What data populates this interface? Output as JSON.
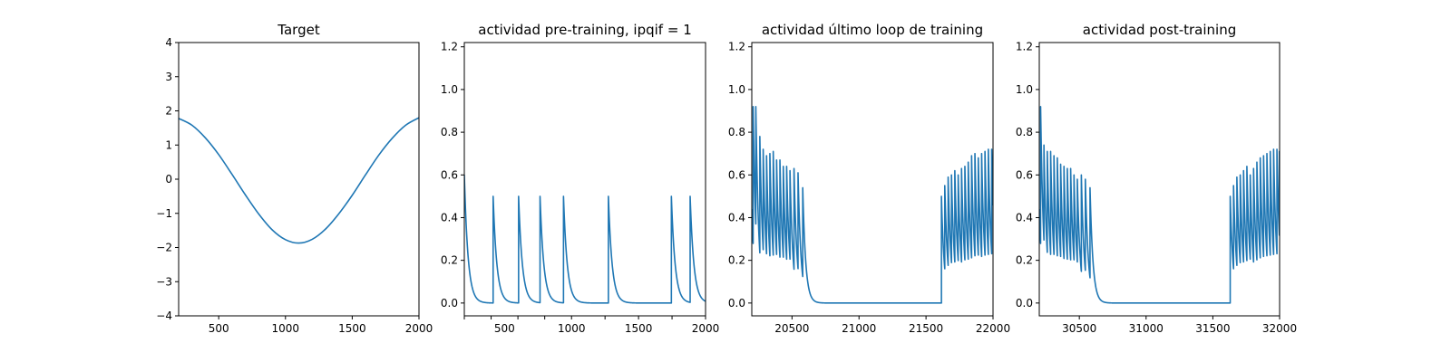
{
  "colors": {
    "series": "#1f77b4",
    "frame": "#000000",
    "background": "#ffffff"
  },
  "chart_data": [
    {
      "type": "line",
      "title": "Target",
      "xlabel": "",
      "ylabel": "",
      "xlim": [
        200,
        2000
      ],
      "ylim": [
        -4,
        4
      ],
      "grid": false,
      "xticks": [
        500,
        1000,
        1500,
        2000
      ],
      "xtick_labels": [
        "500",
        "1000",
        "1500",
        "2000"
      ],
      "yticks": [
        -4,
        -3,
        -2,
        -1,
        0,
        1,
        2,
        3,
        4
      ],
      "ytick_labels": [
        "−4",
        "−3",
        "−2",
        "−1",
        "0",
        "1",
        "2",
        "3",
        "4"
      ],
      "series": [
        {
          "x": [
            200,
            300,
            400,
            500,
            600,
            700,
            800,
            900,
            1000,
            1100,
            1200,
            1300,
            1400,
            1500,
            1600,
            1700,
            1800,
            1900,
            2000
          ],
          "y": [
            1.78,
            1.58,
            1.21,
            0.72,
            0.14,
            -0.46,
            -1.02,
            -1.48,
            -1.77,
            -1.87,
            -1.76,
            -1.46,
            -1.01,
            -0.47,
            0.13,
            0.71,
            1.2,
            1.58,
            1.8
          ]
        }
      ]
    },
    {
      "type": "line",
      "title": "actividad pre-training, ipqif = 1",
      "xlabel": "",
      "ylabel": "",
      "xlim": [
        200,
        2000
      ],
      "ylim": [
        -0.06,
        1.22
      ],
      "grid": false,
      "xticks": [
        200,
        400,
        600,
        800,
        1000,
        1250,
        1500,
        1750,
        2000
      ],
      "xtick_labels": [
        "",
        "",
        "",
        "",
        "",
        "",
        "",
        "",
        ""
      ],
      "xtick_labels_shown": [
        {
          "value": 200,
          "label": ""
        },
        {
          "value": 500,
          "label": ""
        }
      ],
      "yticks": [
        0.0,
        0.2,
        0.4,
        0.6,
        0.8,
        1.0,
        1.2
      ],
      "ytick_labels": [
        "0.0",
        "0.2",
        "0.4",
        "0.6",
        "0.8",
        "1.0",
        "1.2"
      ],
      "spikes": {
        "start_value": 0.6,
        "times": [
          415,
          605,
          765,
          940,
          1275,
          1745,
          1885
        ],
        "peaks": [
          0.5,
          0.5,
          0.5,
          0.5,
          0.5,
          0.5,
          0.5
        ],
        "decay": 28
      }
    },
    {
      "type": "line",
      "title": "actividad último loop de training",
      "xlabel": "",
      "ylabel": "",
      "xlim": [
        20200,
        22000
      ],
      "ylim": [
        -0.06,
        1.22
      ],
      "grid": false,
      "xticks": [
        20500,
        21000,
        21500,
        22000
      ],
      "xtick_labels": [
        "20500",
        "21000",
        "21500",
        "22000"
      ],
      "yticks": [
        0.0,
        0.2,
        0.4,
        0.6,
        0.8,
        1.0,
        1.2
      ],
      "ytick_labels": [
        "0.0",
        "0.2",
        "0.4",
        "0.6",
        "0.8",
        "1.0",
        "1.2"
      ],
      "spikes": {
        "start_value": 0.44,
        "times": [
          20210,
          20230,
          20260,
          20285,
          20310,
          20335,
          20360,
          20385,
          20410,
          20435,
          20460,
          20485,
          20515,
          20545,
          20580,
          21615,
          21640,
          21665,
          21690,
          21715,
          21740,
          21765,
          21790,
          21815,
          21840,
          21865,
          21890,
          21915,
          21940,
          21965,
          21990
        ],
        "peaks": [
          0.92,
          0.92,
          0.78,
          0.72,
          0.69,
          0.7,
          0.71,
          0.67,
          0.67,
          0.64,
          0.64,
          0.62,
          0.63,
          0.61,
          0.54,
          0.5,
          0.55,
          0.59,
          0.6,
          0.62,
          0.6,
          0.63,
          0.64,
          0.66,
          0.69,
          0.7,
          0.68,
          0.7,
          0.71,
          0.72,
          0.72
        ],
        "decay": 22
      }
    },
    {
      "type": "line",
      "title": "actividad post-training",
      "xlabel": "",
      "ylabel": "",
      "xlim": [
        30200,
        32000
      ],
      "ylim": [
        -0.06,
        1.22
      ],
      "grid": false,
      "xticks": [
        30500,
        31000,
        31500,
        32000
      ],
      "xtick_labels": [
        "30500",
        "31000",
        "31500",
        "32000"
      ],
      "yticks": [
        0.0,
        0.2,
        0.4,
        0.6,
        0.8,
        1.0,
        1.2
      ],
      "ytick_labels": [
        "0.0",
        "0.2",
        "0.4",
        "0.6",
        "0.8",
        "1.0",
        "1.2"
      ],
      "spikes": {
        "start_value": 0.44,
        "times": [
          30210,
          30235,
          30260,
          30285,
          30310,
          30335,
          30360,
          30385,
          30410,
          30435,
          30460,
          30485,
          30515,
          30545,
          30580,
          31630,
          31655,
          31680,
          31705,
          31730,
          31755,
          31780,
          31805,
          31830,
          31855,
          31880,
          31905,
          31930,
          31955,
          31980,
          31998
        ],
        "peaks": [
          0.92,
          0.74,
          0.71,
          0.71,
          0.69,
          0.68,
          0.65,
          0.64,
          0.63,
          0.63,
          0.6,
          0.58,
          0.6,
          0.58,
          0.54,
          0.5,
          0.55,
          0.59,
          0.6,
          0.62,
          0.64,
          0.6,
          0.63,
          0.66,
          0.68,
          0.69,
          0.7,
          0.71,
          0.72,
          0.72,
          0.71
        ],
        "decay": 22
      }
    }
  ]
}
